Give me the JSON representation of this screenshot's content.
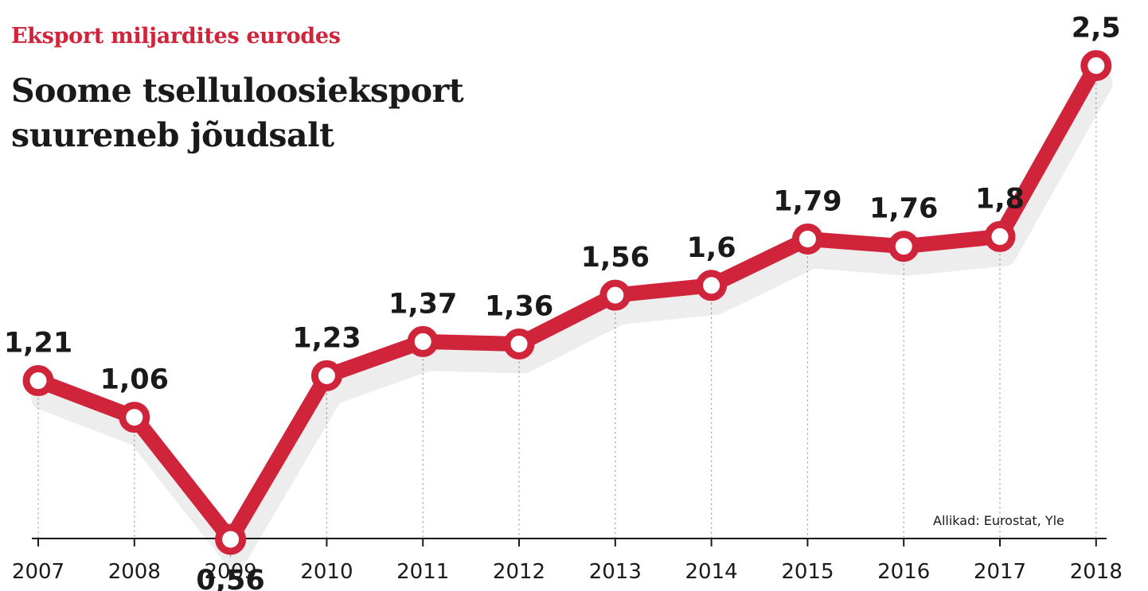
{
  "header": {
    "subtitle": "Eksport miljardites eurodes",
    "title": "Soome tselluloosieksport suureneb jõudsalt"
  },
  "source": "Allikad: Eurostat, Yle",
  "colors": {
    "line": "#d0243a",
    "text": "#1a1a1a",
    "grid": "#9a9a9a"
  },
  "chart_data": {
    "type": "line",
    "title": "Soome tselluloosieksport suureneb jõudsalt",
    "subtitle": "Eksport miljardites eurodes",
    "xlabel": "",
    "ylabel": "",
    "x": [
      "2007",
      "2008",
      "2009",
      "2010",
      "2011",
      "2012",
      "2013",
      "2014",
      "2015",
      "2016",
      "2017",
      "2018"
    ],
    "values": [
      1.21,
      1.06,
      0.56,
      1.23,
      1.37,
      1.36,
      1.56,
      1.6,
      1.79,
      1.76,
      1.8,
      2.5
    ],
    "labels": [
      "1,21",
      "1,06",
      "0,56",
      "1,23",
      "1,37",
      "1,36",
      "1,56",
      "1,6",
      "1,79",
      "1,76",
      "1,8",
      "2,5"
    ],
    "grid": "vertical dotted",
    "legend": "none"
  }
}
